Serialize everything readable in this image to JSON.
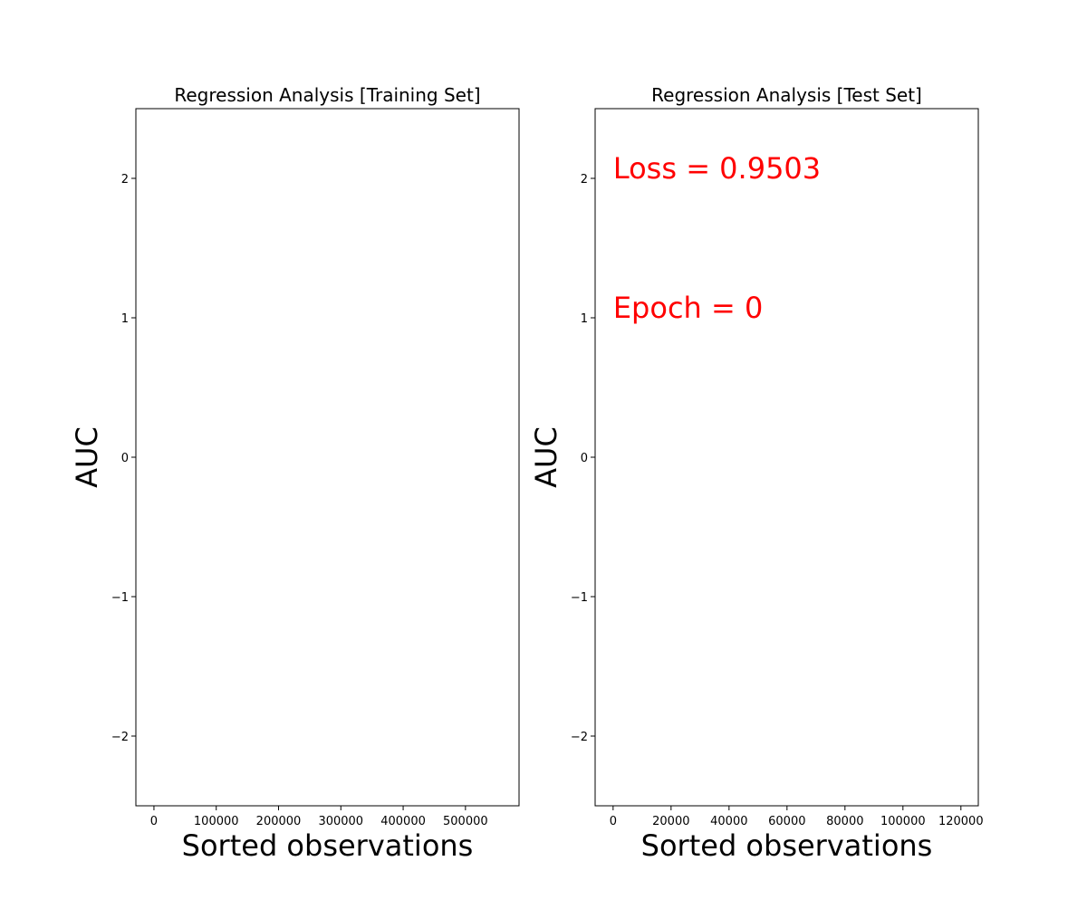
{
  "chart_data": [
    {
      "type": "line",
      "title": "Regression Analysis [Training Set]",
      "xlabel": "Sorted observations",
      "ylabel": "AUC",
      "xlim": [
        -29000,
        586000
      ],
      "ylim": [
        -2.5,
        2.5
      ],
      "x_ticks": [
        0,
        100000,
        200000,
        300000,
        400000,
        500000
      ],
      "x_tick_labels": [
        "0",
        "100000",
        "200000",
        "300000",
        "400000",
        "500000"
      ],
      "y_ticks": [
        2,
        1,
        0,
        -1,
        -2
      ],
      "y_tick_labels": [
        "2",
        "1",
        "0",
        "−1",
        "−2"
      ],
      "series": [],
      "annotations": [],
      "grid": false,
      "legend": "none"
    },
    {
      "type": "line",
      "title": "Regression Analysis [Test Set]",
      "xlabel": "Sorted observations",
      "ylabel": "AUC",
      "xlim": [
        -6200,
        126000
      ],
      "ylim": [
        -2.5,
        2.5
      ],
      "x_ticks": [
        0,
        20000,
        40000,
        60000,
        80000,
        100000,
        120000
      ],
      "x_tick_labels": [
        "0",
        "20000",
        "40000",
        "60000",
        "80000",
        "100000",
        "120000"
      ],
      "y_ticks": [
        2,
        1,
        0,
        -1,
        -2
      ],
      "y_tick_labels": [
        "2",
        "1",
        "0",
        "−1",
        "−2"
      ],
      "series": [],
      "annotations": [
        {
          "text": "Loss = 0.9503",
          "x": 0,
          "y": 2,
          "color": "#ff0000"
        },
        {
          "text": "Epoch = 0",
          "x": 0,
          "y": 1,
          "color": "#ff0000"
        }
      ],
      "grid": false,
      "legend": "none"
    }
  ]
}
